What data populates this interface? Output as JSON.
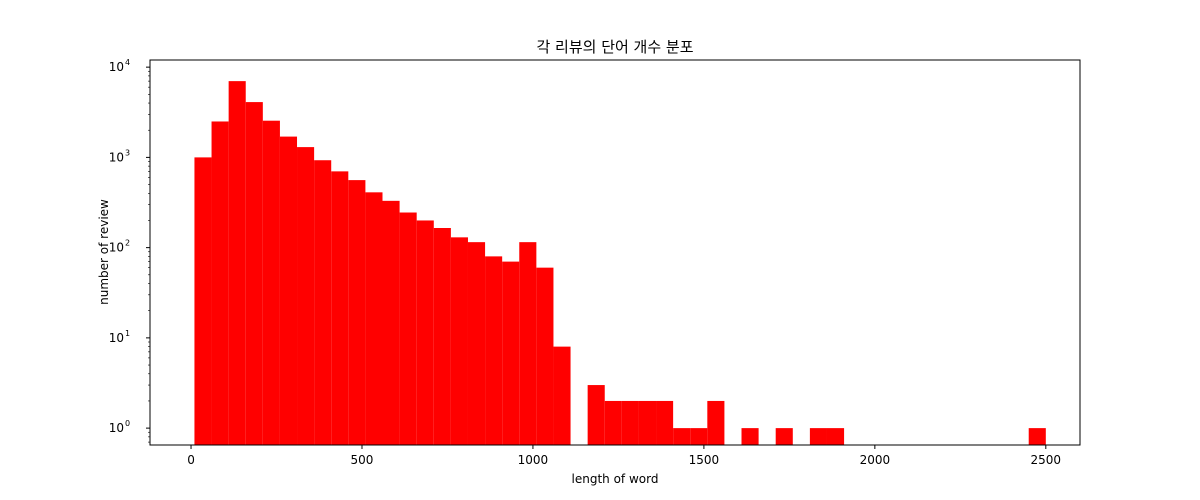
{
  "chart_data": {
    "type": "bar",
    "title": "각 리뷰의 단어 개수 분포",
    "xlabel": "length of word",
    "ylabel": "number of review",
    "yscale": "log",
    "bar_color": "#ff0000",
    "xlim": [
      -120,
      2600
    ],
    "ylim": [
      0.65,
      12000
    ],
    "grid": false,
    "x_ticks": [
      {
        "value": 0,
        "label": "0"
      },
      {
        "value": 500,
        "label": "500"
      },
      {
        "value": 1000,
        "label": "1000"
      },
      {
        "value": 1500,
        "label": "1500"
      },
      {
        "value": 2000,
        "label": "2000"
      },
      {
        "value": 2500,
        "label": "2500"
      }
    ],
    "y_ticks": [
      {
        "value": 1,
        "base": "10",
        "exp": "0"
      },
      {
        "value": 10,
        "base": "10",
        "exp": "1"
      },
      {
        "value": 100,
        "base": "10",
        "exp": "2"
      },
      {
        "value": 1000,
        "base": "10",
        "exp": "3"
      },
      {
        "value": 10000,
        "base": "10",
        "exp": "4"
      }
    ],
    "bins": [
      {
        "x0": 10,
        "x1": 60,
        "count": 1000
      },
      {
        "x0": 60,
        "x1": 110,
        "count": 2500
      },
      {
        "x0": 110,
        "x1": 160,
        "count": 7000
      },
      {
        "x0": 160,
        "x1": 210,
        "count": 4100
      },
      {
        "x0": 210,
        "x1": 260,
        "count": 2550
      },
      {
        "x0": 260,
        "x1": 310,
        "count": 1700
      },
      {
        "x0": 310,
        "x1": 360,
        "count": 1300
      },
      {
        "x0": 360,
        "x1": 410,
        "count": 930
      },
      {
        "x0": 410,
        "x1": 460,
        "count": 700
      },
      {
        "x0": 460,
        "x1": 510,
        "count": 560
      },
      {
        "x0": 510,
        "x1": 560,
        "count": 410
      },
      {
        "x0": 560,
        "x1": 610,
        "count": 330
      },
      {
        "x0": 610,
        "x1": 660,
        "count": 245
      },
      {
        "x0": 660,
        "x1": 710,
        "count": 200
      },
      {
        "x0": 710,
        "x1": 760,
        "count": 165
      },
      {
        "x0": 760,
        "x1": 810,
        "count": 130
      },
      {
        "x0": 810,
        "x1": 860,
        "count": 115
      },
      {
        "x0": 860,
        "x1": 910,
        "count": 80
      },
      {
        "x0": 910,
        "x1": 960,
        "count": 70
      },
      {
        "x0": 960,
        "x1": 1010,
        "count": 115
      },
      {
        "x0": 1010,
        "x1": 1060,
        "count": 60
      },
      {
        "x0": 1060,
        "x1": 1110,
        "count": 8
      },
      {
        "x0": 1110,
        "x1": 1160,
        "count": 0
      },
      {
        "x0": 1160,
        "x1": 1210,
        "count": 3
      },
      {
        "x0": 1210,
        "x1": 1260,
        "count": 2
      },
      {
        "x0": 1260,
        "x1": 1310,
        "count": 2
      },
      {
        "x0": 1310,
        "x1": 1360,
        "count": 2
      },
      {
        "x0": 1360,
        "x1": 1410,
        "count": 2
      },
      {
        "x0": 1410,
        "x1": 1460,
        "count": 1
      },
      {
        "x0": 1460,
        "x1": 1510,
        "count": 1
      },
      {
        "x0": 1510,
        "x1": 1560,
        "count": 2
      },
      {
        "x0": 1560,
        "x1": 1610,
        "count": 0
      },
      {
        "x0": 1610,
        "x1": 1660,
        "count": 1
      },
      {
        "x0": 1660,
        "x1": 1710,
        "count": 0
      },
      {
        "x0": 1710,
        "x1": 1760,
        "count": 1
      },
      {
        "x0": 1760,
        "x1": 1810,
        "count": 0
      },
      {
        "x0": 1810,
        "x1": 1860,
        "count": 1
      },
      {
        "x0": 1860,
        "x1": 1910,
        "count": 1
      },
      {
        "x0": 2450,
        "x1": 2500,
        "count": 1
      }
    ]
  }
}
